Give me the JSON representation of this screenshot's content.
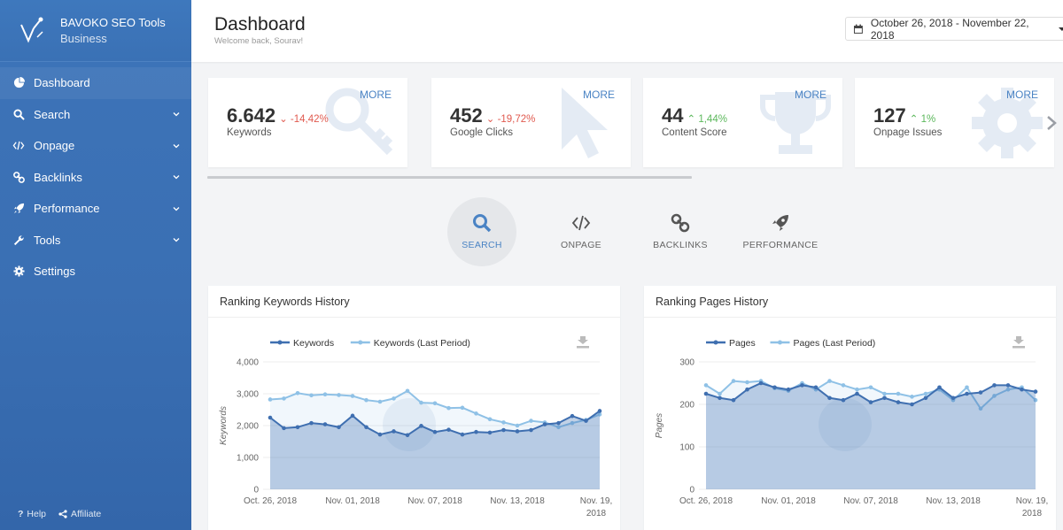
{
  "brand": {
    "name": "BAVOKO SEO Tools",
    "plan": "Business"
  },
  "sidebar": {
    "items": [
      {
        "label": "Dashboard",
        "icon": "pie-chart-icon",
        "has_chevron": false
      },
      {
        "label": "Search",
        "icon": "search-icon",
        "has_chevron": true
      },
      {
        "label": "Onpage",
        "icon": "code-icon",
        "has_chevron": true
      },
      {
        "label": "Backlinks",
        "icon": "link-icon",
        "has_chevron": true
      },
      {
        "label": "Performance",
        "icon": "rocket-icon",
        "has_chevron": true
      },
      {
        "label": "Tools",
        "icon": "wrench-icon",
        "has_chevron": true
      },
      {
        "label": "Settings",
        "icon": "gear-icon",
        "has_chevron": false
      }
    ],
    "footer": {
      "help": "Help",
      "affiliate": "Affiliate"
    }
  },
  "header": {
    "title": "Dashboard",
    "subtitle": "Welcome back, Sourav!",
    "date_range": "October 26, 2018 - November 22, 2018"
  },
  "cards": [
    {
      "value": "6.642",
      "change": "-14,42%",
      "direction": "down",
      "label": "Keywords",
      "more": "MORE",
      "icon": "key-icon"
    },
    {
      "value": "452",
      "change": "-19,72%",
      "direction": "down",
      "label": "Google Clicks",
      "more": "MORE",
      "icon": "cursor-icon"
    },
    {
      "value": "44",
      "change": "1,44%",
      "direction": "up",
      "label": "Content Score",
      "more": "MORE",
      "icon": "trophy-icon"
    },
    {
      "value": "127",
      "change": "1%",
      "direction": "up",
      "label": "Onpage Issues",
      "more": "MORE",
      "icon": "gear-icon"
    }
  ],
  "tabs": [
    {
      "label": "SEARCH",
      "icon": "search-icon",
      "active": true
    },
    {
      "label": "ONPAGE",
      "icon": "code-icon",
      "active": false
    },
    {
      "label": "BACKLINKS",
      "icon": "link-icon",
      "active": false
    },
    {
      "label": "PERFORMANCE",
      "icon": "rocket-icon",
      "active": false
    }
  ],
  "colors": {
    "sidebar": "#3a6fb3",
    "accent": "#4a83c4",
    "down": "#e05a4f",
    "up": "#5cb85c",
    "series_current": "#3f6fb0",
    "series_last": "#8fc1e6"
  },
  "chart_data": [
    {
      "type": "area",
      "title": "Ranking Keywords History",
      "ylabel": "Keywords",
      "ylim": [
        0,
        4000
      ],
      "y_ticks": [
        "0",
        "1,000",
        "2,000",
        "3,000",
        "4,000"
      ],
      "x_ticks": [
        "Oct. 26, 2018",
        "Nov. 01, 2018",
        "Nov. 07, 2018",
        "Nov. 13, 2018",
        "Nov. 19, 2018"
      ],
      "series": [
        {
          "name": "Keywords",
          "values": [
            2250,
            1920,
            1950,
            2080,
            2040,
            1950,
            2310,
            1950,
            1720,
            1820,
            1700,
            1990,
            1800,
            1870,
            1720,
            1800,
            1780,
            1860,
            1820,
            1860,
            2040,
            2080,
            2300,
            2150,
            2460
          ]
        },
        {
          "name": "Keywords (Last Period)",
          "values": [
            2820,
            2850,
            3020,
            2950,
            2980,
            2960,
            2930,
            2800,
            2750,
            2850,
            3090,
            2720,
            2700,
            2550,
            2560,
            2380,
            2200,
            2100,
            2000,
            2150,
            2100,
            1950,
            2080,
            2180,
            2350
          ]
        }
      ],
      "grid": true,
      "legend": "top-center"
    },
    {
      "type": "area",
      "title": "Ranking Pages History",
      "ylabel": "Pages",
      "ylim": [
        0,
        300
      ],
      "y_ticks": [
        "0",
        "100",
        "200",
        "300"
      ],
      "x_ticks": [
        "Oct. 26, 2018",
        "Nov. 01, 2018",
        "Nov. 07, 2018",
        "Nov. 13, 2018",
        "Nov. 19, 2018"
      ],
      "series": [
        {
          "name": "Pages",
          "values": [
            225,
            215,
            210,
            235,
            250,
            240,
            235,
            245,
            240,
            215,
            210,
            225,
            205,
            215,
            205,
            200,
            215,
            240,
            215,
            225,
            228,
            245,
            245,
            235,
            230
          ]
        },
        {
          "name": "Pages (Last Period)",
          "values": [
            245,
            225,
            255,
            252,
            255,
            238,
            232,
            250,
            235,
            255,
            245,
            235,
            240,
            225,
            225,
            218,
            225,
            235,
            210,
            240,
            190,
            220,
            235,
            240,
            210
          ]
        }
      ],
      "grid": true,
      "legend": "top-center"
    }
  ]
}
